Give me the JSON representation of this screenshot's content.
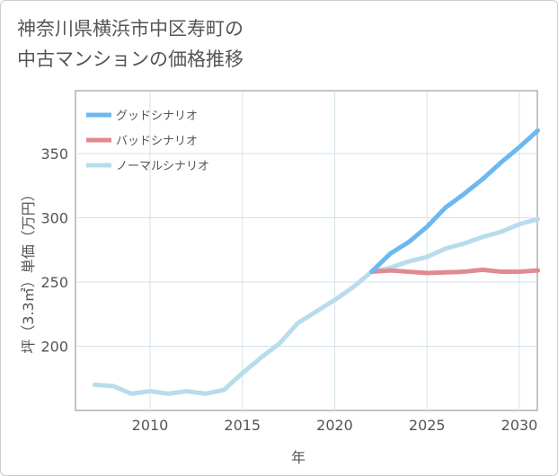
{
  "chart_data": {
    "type": "line",
    "title": "神奈川県横浜市中区寿町の\n中古マンションの価格推移",
    "xlabel": "年",
    "ylabel": "坪（3.3㎡）単価（万円）",
    "xlim": [
      2006,
      2031
    ],
    "ylim": [
      150,
      380
    ],
    "xticks": [
      2010,
      2015,
      2020,
      2025,
      2030
    ],
    "yticks": [
      200,
      250,
      300,
      350
    ],
    "legend_position": "top-left",
    "series": [
      {
        "name": "グッドシナリオ",
        "color": "#6cb8f0",
        "x": [
          2022,
          2023,
          2024,
          2025,
          2026,
          2027,
          2028,
          2029,
          2030,
          2031
        ],
        "values": [
          258,
          272,
          281,
          293,
          308,
          318.5,
          330,
          343,
          355,
          368
        ]
      },
      {
        "name": "バッドシナリオ",
        "color": "#e08a92",
        "x": [
          2022,
          2023,
          2024,
          2025,
          2026,
          2027,
          2028,
          2029,
          2030,
          2031
        ],
        "values": [
          258,
          259,
          258,
          257,
          257.5,
          258,
          259.5,
          258,
          258,
          259
        ]
      },
      {
        "name": "ノーマルシナリオ",
        "color": "#b8dcec",
        "x": [
          2007,
          2008,
          2009,
          2010,
          2011,
          2012,
          2013,
          2014,
          2015,
          2016,
          2017,
          2018,
          2019,
          2020,
          2021,
          2022,
          2023,
          2024,
          2025,
          2026,
          2027,
          2028,
          2029,
          2030,
          2031
        ],
        "values": [
          170,
          169,
          163,
          165,
          163,
          165,
          163,
          166,
          179,
          191,
          202,
          218,
          227,
          236,
          246,
          258,
          261,
          266,
          269.5,
          276,
          280,
          285,
          289,
          295,
          299
        ]
      }
    ]
  }
}
